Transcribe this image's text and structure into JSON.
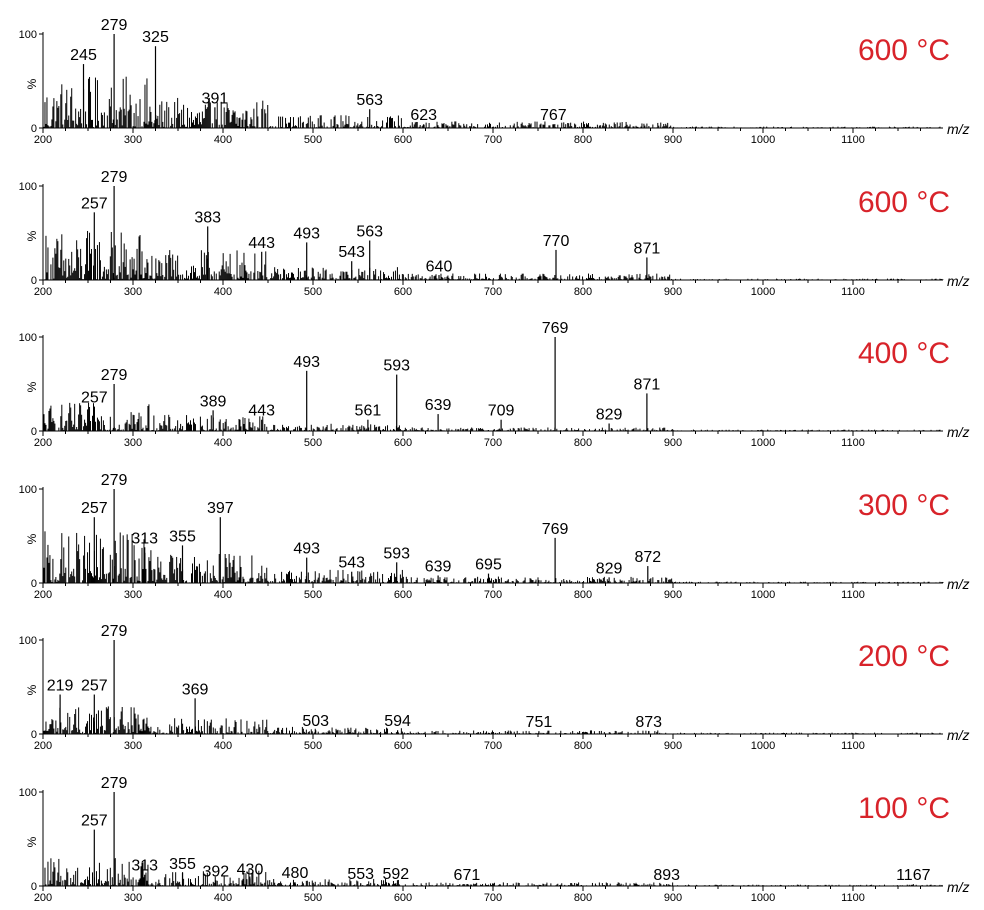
{
  "chart_data": [
    {
      "type": "line",
      "title": "600 °C",
      "xlabel": "m/z",
      "ylabel": "%",
      "xlim": [
        200,
        1200
      ],
      "ylim": [
        0,
        100
      ],
      "x_ticks": [
        200,
        300,
        400,
        500,
        600,
        700,
        800,
        900,
        1000,
        1100
      ],
      "y_ticks": [
        0,
        100
      ],
      "peaks": [
        {
          "mz": 245,
          "intensity": 68,
          "label": "245"
        },
        {
          "mz": 279,
          "intensity": 100,
          "label": "279"
        },
        {
          "mz": 325,
          "intensity": 87,
          "label": "325"
        },
        {
          "mz": 391,
          "intensity": 22,
          "label": "391"
        },
        {
          "mz": 563,
          "intensity": 20,
          "label": "563"
        },
        {
          "mz": 623,
          "intensity": 4,
          "label": "623"
        },
        {
          "mz": 767,
          "intensity": 4,
          "label": "767"
        }
      ]
    },
    {
      "type": "line",
      "title": "600 °C",
      "xlabel": "m/z",
      "ylabel": "%",
      "xlim": [
        200,
        1200
      ],
      "ylim": [
        0,
        100
      ],
      "x_ticks": [
        200,
        300,
        400,
        500,
        600,
        700,
        800,
        900,
        1000,
        1100
      ],
      "y_ticks": [
        0,
        100
      ],
      "peaks": [
        {
          "mz": 257,
          "intensity": 72,
          "label": "257"
        },
        {
          "mz": 279,
          "intensity": 100,
          "label": "279"
        },
        {
          "mz": 383,
          "intensity": 57,
          "label": "383"
        },
        {
          "mz": 443,
          "intensity": 30,
          "label": "443"
        },
        {
          "mz": 493,
          "intensity": 40,
          "label": "493"
        },
        {
          "mz": 543,
          "intensity": 20,
          "label": "543"
        },
        {
          "mz": 563,
          "intensity": 42,
          "label": "563"
        },
        {
          "mz": 640,
          "intensity": 5,
          "label": "640"
        },
        {
          "mz": 770,
          "intensity": 32,
          "label": "770"
        },
        {
          "mz": 871,
          "intensity": 24,
          "label": "871"
        }
      ]
    },
    {
      "type": "line",
      "title": "400 °C",
      "xlabel": "m/z",
      "ylabel": "%",
      "xlim": [
        200,
        1200
      ],
      "ylim": [
        0,
        100
      ],
      "x_ticks": [
        200,
        300,
        400,
        500,
        600,
        700,
        800,
        900,
        1000,
        1100
      ],
      "y_ticks": [
        0,
        100
      ],
      "peaks": [
        {
          "mz": 257,
          "intensity": 26,
          "label": "257"
        },
        {
          "mz": 279,
          "intensity": 50,
          "label": "279"
        },
        {
          "mz": 389,
          "intensity": 22,
          "label": "389"
        },
        {
          "mz": 443,
          "intensity": 12,
          "label": "443"
        },
        {
          "mz": 493,
          "intensity": 64,
          "label": "493"
        },
        {
          "mz": 561,
          "intensity": 12,
          "label": "561"
        },
        {
          "mz": 593,
          "intensity": 60,
          "label": "593"
        },
        {
          "mz": 639,
          "intensity": 18,
          "label": "639"
        },
        {
          "mz": 709,
          "intensity": 12,
          "label": "709"
        },
        {
          "mz": 769,
          "intensity": 100,
          "label": "769"
        },
        {
          "mz": 829,
          "intensity": 8,
          "label": "829"
        },
        {
          "mz": 871,
          "intensity": 40,
          "label": "871"
        }
      ]
    },
    {
      "type": "line",
      "title": "300 °C",
      "xlabel": "m/z",
      "ylabel": "%",
      "xlim": [
        200,
        1200
      ],
      "ylim": [
        0,
        100
      ],
      "x_ticks": [
        200,
        300,
        400,
        500,
        600,
        700,
        800,
        900,
        1000,
        1100
      ],
      "y_ticks": [
        0,
        100
      ],
      "peaks": [
        {
          "mz": 257,
          "intensity": 70,
          "label": "257"
        },
        {
          "mz": 279,
          "intensity": 100,
          "label": "279"
        },
        {
          "mz": 313,
          "intensity": 38,
          "label": "313"
        },
        {
          "mz": 355,
          "intensity": 40,
          "label": "355"
        },
        {
          "mz": 397,
          "intensity": 70,
          "label": "397"
        },
        {
          "mz": 493,
          "intensity": 27,
          "label": "493"
        },
        {
          "mz": 543,
          "intensity": 12,
          "label": "543"
        },
        {
          "mz": 593,
          "intensity": 22,
          "label": "593"
        },
        {
          "mz": 639,
          "intensity": 8,
          "label": "639"
        },
        {
          "mz": 695,
          "intensity": 10,
          "label": "695"
        },
        {
          "mz": 769,
          "intensity": 48,
          "label": "769"
        },
        {
          "mz": 829,
          "intensity": 6,
          "label": "829"
        },
        {
          "mz": 872,
          "intensity": 18,
          "label": "872"
        }
      ]
    },
    {
      "type": "line",
      "title": "200 °C",
      "xlabel": "m/z",
      "ylabel": "%",
      "xlim": [
        200,
        1200
      ],
      "ylim": [
        0,
        100
      ],
      "x_ticks": [
        200,
        300,
        400,
        500,
        600,
        700,
        800,
        900,
        1000,
        1100
      ],
      "y_ticks": [
        0,
        100
      ],
      "peaks": [
        {
          "mz": 219,
          "intensity": 42,
          "label": "219"
        },
        {
          "mz": 257,
          "intensity": 42,
          "label": "257"
        },
        {
          "mz": 279,
          "intensity": 100,
          "label": "279"
        },
        {
          "mz": 369,
          "intensity": 38,
          "label": "369"
        },
        {
          "mz": 503,
          "intensity": 4,
          "label": "503"
        },
        {
          "mz": 594,
          "intensity": 4,
          "label": "594"
        },
        {
          "mz": 751,
          "intensity": 3,
          "label": "751"
        },
        {
          "mz": 873,
          "intensity": 3,
          "label": "873"
        }
      ]
    },
    {
      "type": "line",
      "title": "100 °C",
      "xlabel": "m/z",
      "ylabel": "%",
      "xlim": [
        200,
        1200
      ],
      "ylim": [
        0,
        100
      ],
      "x_ticks": [
        200,
        300,
        400,
        500,
        600,
        700,
        800,
        900,
        1000,
        1100
      ],
      "y_ticks": [
        0,
        100
      ],
      "peaks": [
        {
          "mz": 257,
          "intensity": 60,
          "label": "257"
        },
        {
          "mz": 279,
          "intensity": 100,
          "label": "279"
        },
        {
          "mz": 313,
          "intensity": 12,
          "label": "313"
        },
        {
          "mz": 355,
          "intensity": 14,
          "label": "355"
        },
        {
          "mz": 392,
          "intensity": 6,
          "label": "392"
        },
        {
          "mz": 430,
          "intensity": 8,
          "label": "430"
        },
        {
          "mz": 480,
          "intensity": 4,
          "label": "480"
        },
        {
          "mz": 553,
          "intensity": 3,
          "label": "553"
        },
        {
          "mz": 592,
          "intensity": 3,
          "label": "592"
        },
        {
          "mz": 671,
          "intensity": 2,
          "label": "671"
        },
        {
          "mz": 893,
          "intensity": 2,
          "label": "893"
        },
        {
          "mz": 1167,
          "intensity": 2,
          "label": "1167"
        }
      ]
    }
  ],
  "colors": {
    "trace": "#000000",
    "temperature_label": "#d8232a",
    "axis": "#000000"
  }
}
